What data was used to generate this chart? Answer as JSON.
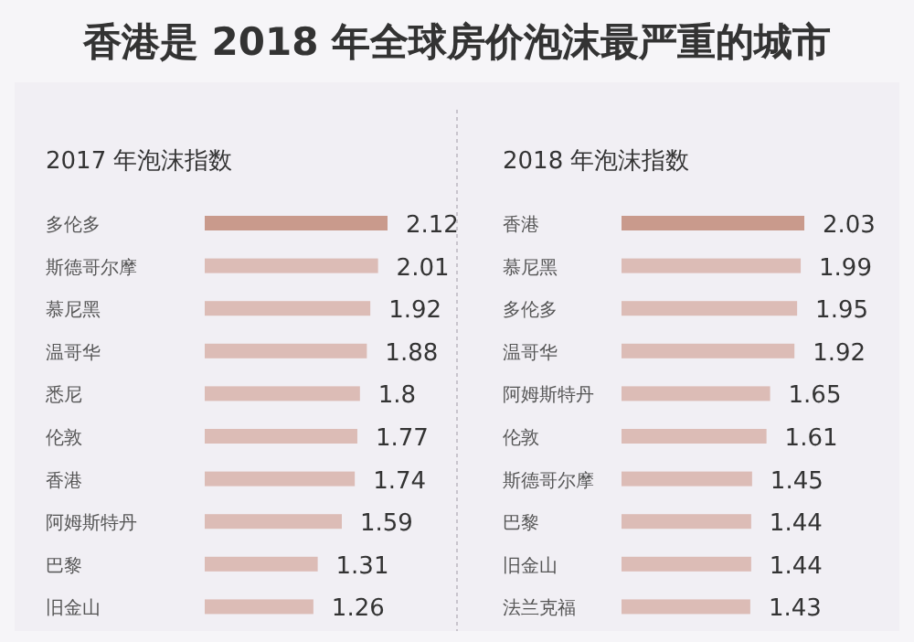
{
  "chart_data": [
    {
      "type": "bar",
      "orientation": "horizontal",
      "annotations": [
        "香港是 2018 年全球房价泡沫最严重的城市"
      ],
      "title": "2017 年泡沫指数",
      "categories": [
        "多伦多",
        "斯德哥尔摩",
        "慕尼黑",
        "温哥华",
        "悉尼",
        "伦敦",
        "香港",
        "阿姆斯特丹",
        "巴黎",
        "旧金山"
      ],
      "values": [
        2.12,
        2.01,
        1.92,
        1.88,
        1.8,
        1.77,
        1.74,
        1.59,
        1.31,
        1.26
      ],
      "colors": [
        "#c99a8c",
        "#dcbcb6",
        "#dcbcb6",
        "#dcbcb6",
        "#dcbcb6",
        "#dcbcb6",
        "#dcbcb6",
        "#dcbcb6",
        "#dcbcb6",
        "#dcbcb6"
      ],
      "data_labels": true
    },
    {
      "type": "bar",
      "orientation": "horizontal",
      "title": "2018 年泡沫指数",
      "categories": [
        "香港",
        "慕尼黑",
        "多伦多",
        "温哥华",
        "阿姆斯特丹",
        "伦敦",
        "斯德哥尔摩",
        "巴黎",
        "旧金山",
        "法兰克福"
      ],
      "values": [
        2.03,
        1.99,
        1.95,
        1.92,
        1.65,
        1.61,
        1.45,
        1.44,
        1.44,
        1.43
      ],
      "colors": [
        "#c99a8c",
        "#dcbcb6",
        "#dcbcb6",
        "#dcbcb6",
        "#dcbcb6",
        "#dcbcb6",
        "#dcbcb6",
        "#dcbcb6",
        "#dcbcb6",
        "#dcbcb6"
      ],
      "data_labels": true
    }
  ]
}
